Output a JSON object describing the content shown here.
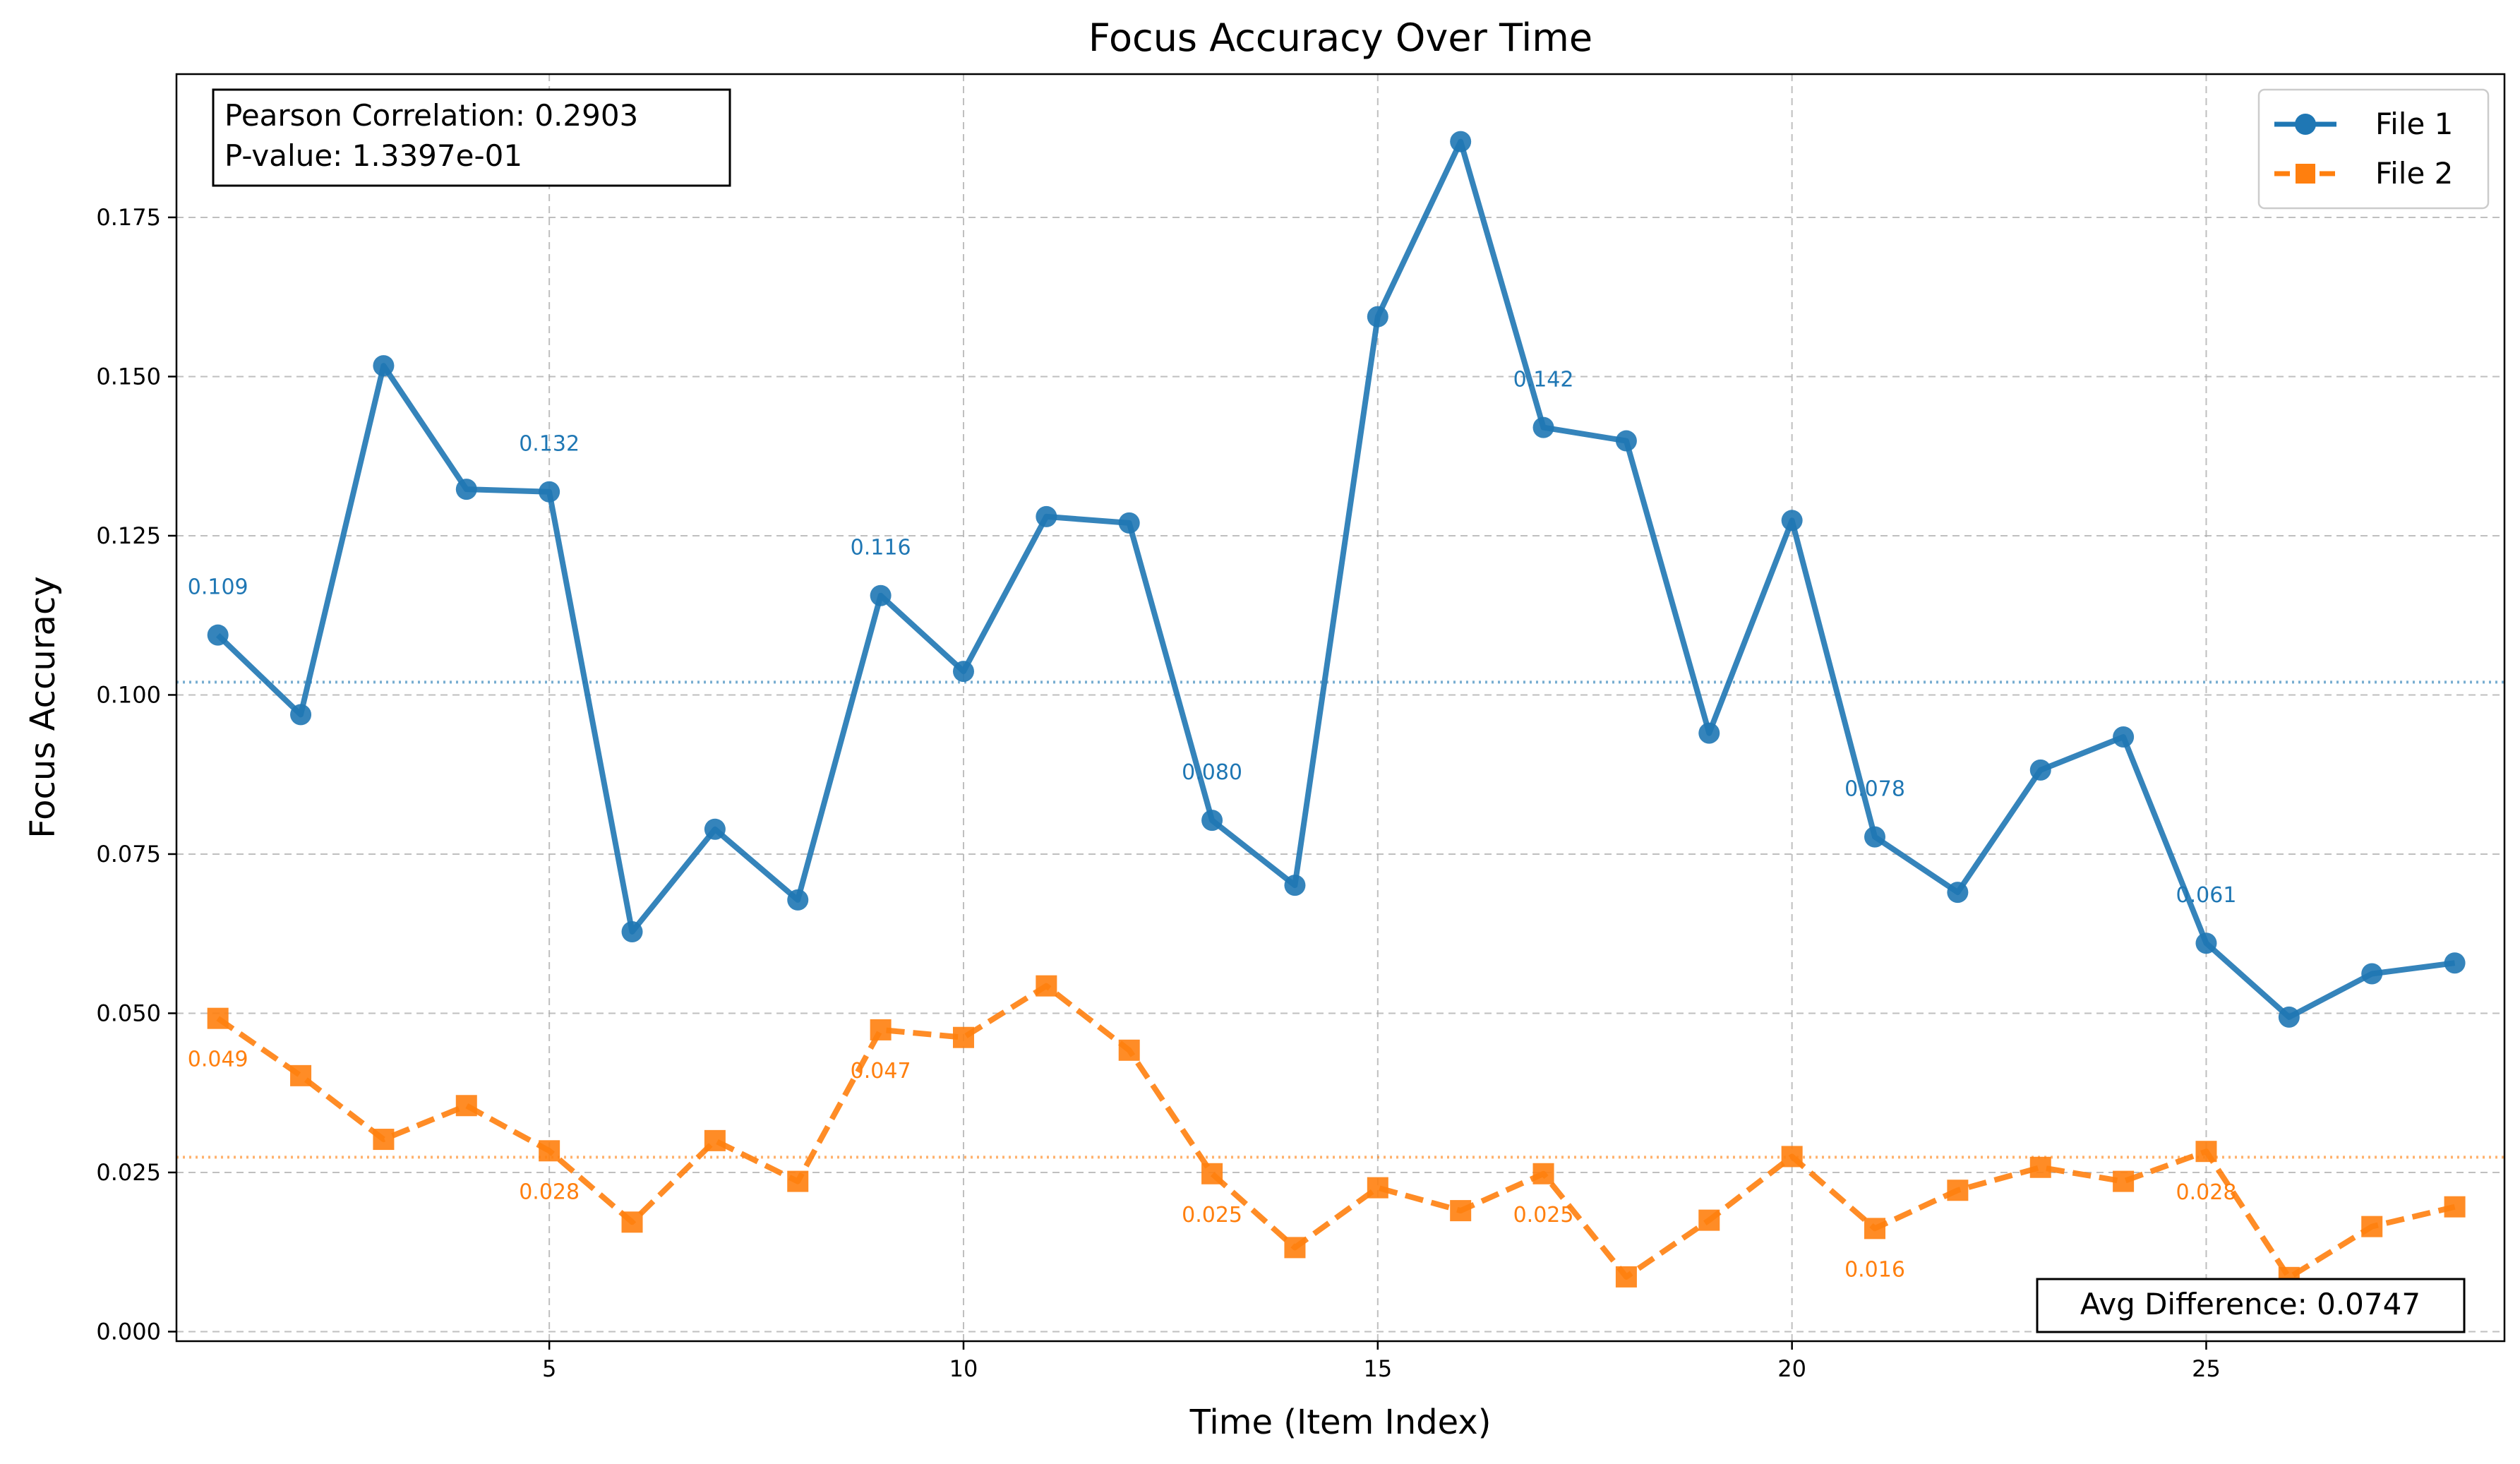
{
  "chart_data": {
    "type": "line",
    "title": "Focus Accuracy Over Time",
    "xlabel": "Time (Item Index)",
    "ylabel": "Focus Accuracy",
    "xlim": [
      0.5,
      28.6
    ],
    "ylim": [
      -0.0015,
      0.1975
    ],
    "x_ticks": [
      5,
      10,
      15,
      20,
      25
    ],
    "y_ticks": [
      0.0,
      0.025,
      0.05,
      0.075,
      0.1,
      0.125,
      0.15,
      0.175
    ],
    "y_tick_labels": [
      "0.000",
      "0.025",
      "0.050",
      "0.075",
      "0.100",
      "0.125",
      "0.150",
      "0.175"
    ],
    "grid": true,
    "legend_position": "top-right",
    "x": [
      1,
      2,
      3,
      4,
      5,
      6,
      7,
      8,
      9,
      10,
      11,
      12,
      13,
      14,
      15,
      16,
      17,
      18,
      19,
      20,
      21,
      22,
      23,
      24,
      25,
      26,
      27,
      28
    ],
    "series": [
      {
        "name": "File 1",
        "color": "#1f77b4",
        "marker": "circle",
        "line_style": "solid",
        "values": [
          0.1094,
          0.0969,
          0.1517,
          0.1323,
          0.1319,
          0.0628,
          0.0789,
          0.0678,
          0.1156,
          0.1037,
          0.128,
          0.127,
          0.0803,
          0.0701,
          0.1594,
          0.1869,
          0.142,
          0.1399,
          0.094,
          0.1274,
          0.0777,
          0.069,
          0.0882,
          0.0934,
          0.061,
          0.0494,
          0.0562,
          0.0579
        ],
        "mean": 0.102
      },
      {
        "name": "File 2",
        "color": "#ff7f0e",
        "marker": "square",
        "line_style": "dashed",
        "values": [
          0.0492,
          0.0402,
          0.0302,
          0.0355,
          0.0284,
          0.0172,
          0.03,
          0.0236,
          0.0474,
          0.0462,
          0.0543,
          0.0442,
          0.0248,
          0.0132,
          0.0226,
          0.019,
          0.0248,
          0.0086,
          0.0175,
          0.0275,
          0.0162,
          0.0222,
          0.0258,
          0.0236,
          0.0283,
          0.0085,
          0.0165,
          0.0196
        ],
        "mean": 0.0274
      }
    ],
    "point_labels": [
      {
        "series": 0,
        "x": 1,
        "text": "0.109"
      },
      {
        "series": 0,
        "x": 5,
        "text": "0.132"
      },
      {
        "series": 0,
        "x": 9,
        "text": "0.116"
      },
      {
        "series": 0,
        "x": 13,
        "text": "0.080"
      },
      {
        "series": 0,
        "x": 17,
        "text": "0.142"
      },
      {
        "series": 0,
        "x": 21,
        "text": "0.078"
      },
      {
        "series": 0,
        "x": 25,
        "text": "0.061"
      },
      {
        "series": 1,
        "x": 1,
        "text": "0.049"
      },
      {
        "series": 1,
        "x": 5,
        "text": "0.028"
      },
      {
        "series": 1,
        "x": 9,
        "text": "0.047"
      },
      {
        "series": 1,
        "x": 13,
        "text": "0.025"
      },
      {
        "series": 1,
        "x": 17,
        "text": "0.025"
      },
      {
        "series": 1,
        "x": 21,
        "text": "0.016"
      },
      {
        "series": 1,
        "x": 25,
        "text": "0.028"
      }
    ],
    "stats_box": {
      "line1": "Pearson Correlation: 0.2903",
      "line2": "P-value: 1.3397e-01"
    },
    "avg_difference_box": "Avg Difference: 0.0747"
  }
}
